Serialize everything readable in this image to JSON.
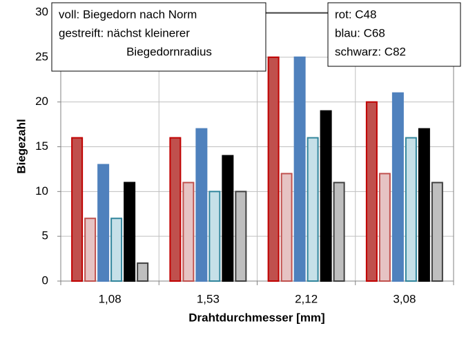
{
  "chart_data": {
    "type": "bar",
    "x_label": "Drahtdurchmesser [mm]",
    "y_label": "Biegezahl",
    "categories": [
      "1,08",
      "1,53",
      "2,12",
      "3,08"
    ],
    "series": [
      {
        "color": "#c0504d",
        "edgecolor": "#c00000",
        "values": [
          16,
          16,
          25,
          20
        ]
      },
      {
        "color": "#e6c3c3",
        "edgecolor": "#c0504d",
        "values": [
          7,
          11,
          12,
          12
        ]
      },
      {
        "color": "#4f81bd",
        "edgecolor": "#4f81bd",
        "values": [
          13,
          17,
          25,
          21
        ]
      },
      {
        "color": "#c6e0e8",
        "edgecolor": "#31859c",
        "values": [
          7,
          10,
          16,
          16
        ]
      },
      {
        "color": "#000000",
        "edgecolor": "#000000",
        "values": [
          11,
          14,
          19,
          17
        ]
      },
      {
        "color": "#bfbfbf",
        "edgecolor": "#404040",
        "values": [
          2,
          10,
          11,
          11
        ]
      }
    ],
    "ylim": [
      0,
      30
    ],
    "yticks": [
      0,
      5,
      10,
      15,
      20,
      25,
      30
    ],
    "grid": true,
    "annotations": [
      [
        "voll: Biegedorn nach Norm",
        "gestreift: nächst kleinerer",
        "Biegedornradius"
      ],
      [
        "rot: C48",
        "blau: C68",
        "schwarz: C82"
      ]
    ]
  }
}
